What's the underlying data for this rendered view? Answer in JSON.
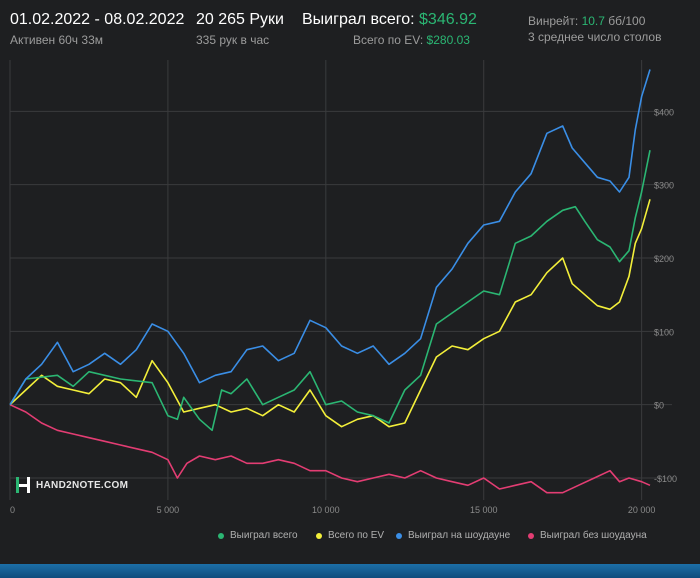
{
  "header": {
    "date_range": "01.02.2022 - 08.02.2022",
    "active_time": "Активен 60ч 33м",
    "hands": "20 265 Руки",
    "hands_per_hour": "335 рук в час",
    "won_total_label": "Выиграл всего:",
    "won_total_value": "$346.92",
    "ev_total_label": "Всего по EV:",
    "ev_total_value": "$280.03",
    "winrate_label": "Винрейт:",
    "winrate_value": "10.7",
    "winrate_unit": "бб/100",
    "avg_tables": "3 среднее число столов"
  },
  "logo": {
    "text": "HAND2NOTE.COM"
  },
  "colors": {
    "won_total": "#2bb673",
    "ev": "#f3ef3a",
    "showdown": "#3a8ee6",
    "non_showdown": "#e33d73",
    "grid": "#3a3b3d"
  },
  "chart_data": {
    "type": "line",
    "x_ticks": [
      0,
      5000,
      10000,
      15000,
      20000
    ],
    "x_tick_labels": [
      "0",
      "5 000",
      "10 000",
      "15 000",
      "20 000"
    ],
    "y_ticks": [
      -100,
      0,
      100,
      200,
      300,
      400
    ],
    "y_tick_labels": [
      "-$100",
      "$0",
      "$100",
      "$200",
      "$300",
      "$400"
    ],
    "xlim": [
      0,
      20265
    ],
    "ylim": [
      -130,
      470
    ],
    "legend_position": "bottom-right",
    "grid": true,
    "series": [
      {
        "name": "Выиграл всего",
        "color": "#2bb673",
        "points": [
          [
            0,
            0
          ],
          [
            500,
            35
          ],
          [
            1500,
            40
          ],
          [
            2000,
            25
          ],
          [
            2500,
            45
          ],
          [
            3500,
            35
          ],
          [
            4500,
            30
          ],
          [
            5000,
            -15
          ],
          [
            5300,
            -20
          ],
          [
            5500,
            10
          ],
          [
            6000,
            -20
          ],
          [
            6400,
            -35
          ],
          [
            6700,
            20
          ],
          [
            7000,
            15
          ],
          [
            7500,
            35
          ],
          [
            8000,
            0
          ],
          [
            8500,
            10
          ],
          [
            9000,
            20
          ],
          [
            9500,
            45
          ],
          [
            10000,
            0
          ],
          [
            10500,
            5
          ],
          [
            11000,
            -10
          ],
          [
            11500,
            -15
          ],
          [
            12000,
            -25
          ],
          [
            12500,
            20
          ],
          [
            13000,
            40
          ],
          [
            13500,
            110
          ],
          [
            14000,
            125
          ],
          [
            14500,
            140
          ],
          [
            15000,
            155
          ],
          [
            15500,
            150
          ],
          [
            16000,
            220
          ],
          [
            16500,
            230
          ],
          [
            17000,
            250
          ],
          [
            17500,
            265
          ],
          [
            17900,
            270
          ],
          [
            18200,
            250
          ],
          [
            18600,
            225
          ],
          [
            19000,
            215
          ],
          [
            19300,
            195
          ],
          [
            19600,
            210
          ],
          [
            19800,
            255
          ],
          [
            20000,
            290
          ],
          [
            20265,
            347
          ]
        ]
      },
      {
        "name": "Всего по EV",
        "color": "#f3ef3a",
        "points": [
          [
            0,
            0
          ],
          [
            500,
            20
          ],
          [
            1000,
            40
          ],
          [
            1500,
            25
          ],
          [
            2000,
            20
          ],
          [
            2500,
            15
          ],
          [
            3000,
            35
          ],
          [
            3500,
            30
          ],
          [
            4000,
            10
          ],
          [
            4500,
            60
          ],
          [
            5000,
            30
          ],
          [
            5500,
            -10
          ],
          [
            6000,
            -5
          ],
          [
            6500,
            0
          ],
          [
            7000,
            -10
          ],
          [
            7500,
            -5
          ],
          [
            8000,
            -15
          ],
          [
            8500,
            0
          ],
          [
            9000,
            -10
          ],
          [
            9500,
            20
          ],
          [
            10000,
            -15
          ],
          [
            10500,
            -30
          ],
          [
            11000,
            -20
          ],
          [
            11500,
            -15
          ],
          [
            12000,
            -30
          ],
          [
            12500,
            -25
          ],
          [
            13000,
            20
          ],
          [
            13500,
            65
          ],
          [
            14000,
            80
          ],
          [
            14500,
            75
          ],
          [
            15000,
            90
          ],
          [
            15500,
            100
          ],
          [
            16000,
            140
          ],
          [
            16500,
            150
          ],
          [
            17000,
            180
          ],
          [
            17500,
            200
          ],
          [
            17800,
            165
          ],
          [
            18200,
            150
          ],
          [
            18600,
            135
          ],
          [
            19000,
            130
          ],
          [
            19300,
            140
          ],
          [
            19600,
            175
          ],
          [
            19800,
            220
          ],
          [
            20000,
            240
          ],
          [
            20265,
            280
          ]
        ]
      },
      {
        "name": "Выиграл на шоудауне",
        "color": "#3a8ee6",
        "points": [
          [
            0,
            0
          ],
          [
            500,
            35
          ],
          [
            1000,
            55
          ],
          [
            1500,
            85
          ],
          [
            2000,
            45
          ],
          [
            2500,
            55
          ],
          [
            3000,
            70
          ],
          [
            3500,
            55
          ],
          [
            4000,
            75
          ],
          [
            4500,
            110
          ],
          [
            5000,
            100
          ],
          [
            5500,
            70
          ],
          [
            6000,
            30
          ],
          [
            6500,
            40
          ],
          [
            7000,
            45
          ],
          [
            7500,
            75
          ],
          [
            8000,
            80
          ],
          [
            8500,
            60
          ],
          [
            9000,
            70
          ],
          [
            9500,
            115
          ],
          [
            10000,
            105
          ],
          [
            10500,
            80
          ],
          [
            11000,
            70
          ],
          [
            11500,
            80
          ],
          [
            12000,
            55
          ],
          [
            12500,
            70
          ],
          [
            13000,
            90
          ],
          [
            13500,
            160
          ],
          [
            14000,
            185
          ],
          [
            14500,
            220
          ],
          [
            15000,
            245
          ],
          [
            15500,
            250
          ],
          [
            16000,
            290
          ],
          [
            16500,
            315
          ],
          [
            17000,
            370
          ],
          [
            17500,
            380
          ],
          [
            17800,
            350
          ],
          [
            18200,
            330
          ],
          [
            18600,
            310
          ],
          [
            19000,
            305
          ],
          [
            19300,
            290
          ],
          [
            19600,
            310
          ],
          [
            19800,
            375
          ],
          [
            20000,
            420
          ],
          [
            20265,
            457
          ]
        ]
      },
      {
        "name": "Выиграл без шоудауна",
        "color": "#e33d73",
        "points": [
          [
            0,
            0
          ],
          [
            500,
            -10
          ],
          [
            1000,
            -25
          ],
          [
            1500,
            -35
          ],
          [
            2000,
            -40
          ],
          [
            2500,
            -45
          ],
          [
            3000,
            -50
          ],
          [
            3500,
            -55
          ],
          [
            4000,
            -60
          ],
          [
            4500,
            -65
          ],
          [
            5000,
            -75
          ],
          [
            5300,
            -100
          ],
          [
            5600,
            -80
          ],
          [
            6000,
            -70
          ],
          [
            6500,
            -75
          ],
          [
            7000,
            -70
          ],
          [
            7500,
            -80
          ],
          [
            8000,
            -80
          ],
          [
            8500,
            -75
          ],
          [
            9000,
            -80
          ],
          [
            9500,
            -90
          ],
          [
            10000,
            -90
          ],
          [
            10500,
            -100
          ],
          [
            11000,
            -105
          ],
          [
            11500,
            -100
          ],
          [
            12000,
            -95
          ],
          [
            12500,
            -100
          ],
          [
            13000,
            -90
          ],
          [
            13500,
            -100
          ],
          [
            14000,
            -105
          ],
          [
            14500,
            -110
          ],
          [
            15000,
            -100
          ],
          [
            15500,
            -115
          ],
          [
            16000,
            -110
          ],
          [
            16500,
            -105
          ],
          [
            17000,
            -120
          ],
          [
            17500,
            -120
          ],
          [
            18000,
            -110
          ],
          [
            18500,
            -100
          ],
          [
            19000,
            -90
          ],
          [
            19300,
            -105
          ],
          [
            19600,
            -100
          ],
          [
            20000,
            -105
          ],
          [
            20265,
            -110
          ]
        ]
      }
    ]
  }
}
